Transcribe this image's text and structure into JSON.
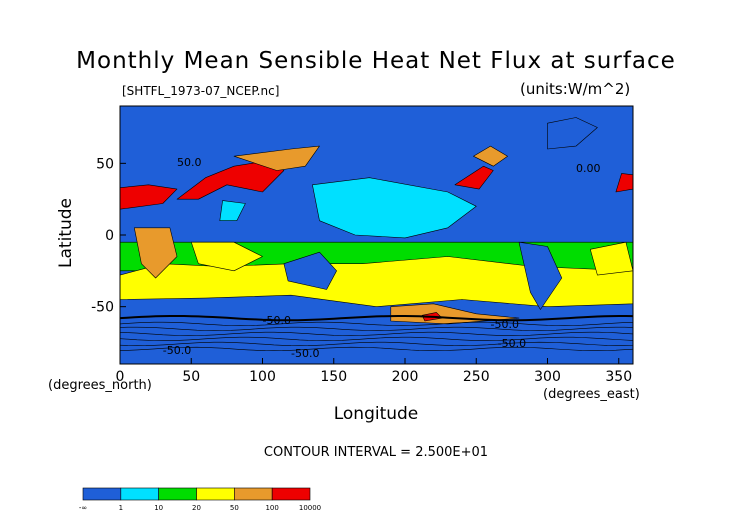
{
  "title": "Monthly Mean Sensible Heat Net Flux at surface",
  "file_label": "[SHTFL_1973-07_NCEP.nc]",
  "units_label": "(units:W/m^2)",
  "xlabel": "Longitude",
  "ylabel": "Latitude",
  "x_unit_left": "(degrees_north)",
  "x_unit_right": "(degrees_east)",
  "contour_interval": "CONTOUR INTERVAL = 2.500E+01",
  "colors": {
    "blue": "#1f5fd8",
    "cyan": "#00e0ff",
    "green": "#00dd00",
    "yellow": "#ffff00",
    "orange": "#e89a2c",
    "red": "#ee0000"
  },
  "chart_data": {
    "type": "heatmap",
    "title": "Monthly Mean Sensible Heat Net Flux at surface",
    "xlabel": "Longitude",
    "ylabel": "Latitude",
    "xlim": [
      0,
      360
    ],
    "ylim": [
      -90,
      90
    ],
    "x_ticks": [
      "0",
      "50",
      "100",
      "150",
      "200",
      "250",
      "300",
      "350"
    ],
    "y_ticks": [
      "50",
      "0",
      "-50"
    ],
    "contour_labels": [
      "50.0",
      "-50.0",
      "-50.0",
      "-50.0",
      "-50.0",
      "0.00",
      "-50.0"
    ],
    "colorbar_labels": [
      "-∞",
      "1",
      "10",
      "20",
      "50",
      "100",
      "10000"
    ],
    "colorbar_colors": [
      "#1f5fd8",
      "#00e0ff",
      "#00dd00",
      "#ffff00",
      "#e89a2c",
      "#ee0000"
    ],
    "regions": [
      {
        "name": "south-ocean-green",
        "color": "green",
        "pts": [
          [
            0,
            -5
          ],
          [
            360,
            -5
          ],
          [
            360,
            -25
          ],
          [
            0,
            -25
          ]
        ]
      },
      {
        "name": "south-yellow",
        "color": "yellow",
        "pts": [
          [
            0,
            -28
          ],
          [
            30,
            -20
          ],
          [
            70,
            -22
          ],
          [
            120,
            -20
          ],
          [
            170,
            -20
          ],
          [
            230,
            -15
          ],
          [
            290,
            -22
          ],
          [
            360,
            -25
          ],
          [
            360,
            -48
          ],
          [
            300,
            -50
          ],
          [
            240,
            -45
          ],
          [
            180,
            -50
          ],
          [
            120,
            -42
          ],
          [
            60,
            -44
          ],
          [
            0,
            -45
          ]
        ]
      },
      {
        "name": "south-orange",
        "color": "orange",
        "pts": [
          [
            190,
            -50
          ],
          [
            220,
            -48
          ],
          [
            250,
            -55
          ],
          [
            280,
            -58
          ],
          [
            230,
            -62
          ],
          [
            190,
            -60
          ]
        ]
      },
      {
        "name": "south-red",
        "color": "red",
        "pts": [
          [
            212,
            -56
          ],
          [
            222,
            -54
          ],
          [
            226,
            -58
          ],
          [
            214,
            -60
          ]
        ]
      },
      {
        "name": "pacific-cyan",
        "color": "cyan",
        "pts": [
          [
            135,
            35
          ],
          [
            175,
            40
          ],
          [
            230,
            30
          ],
          [
            250,
            20
          ],
          [
            230,
            5
          ],
          [
            200,
            -2
          ],
          [
            165,
            0
          ],
          [
            140,
            10
          ]
        ]
      },
      {
        "name": "indian-yellow",
        "color": "yellow",
        "pts": [
          [
            50,
            -5
          ],
          [
            80,
            -5
          ],
          [
            100,
            -15
          ],
          [
            80,
            -25
          ],
          [
            55,
            -20
          ]
        ]
      },
      {
        "name": "atlantic-yellow",
        "color": "yellow",
        "pts": [
          [
            330,
            -10
          ],
          [
            355,
            -5
          ],
          [
            360,
            -25
          ],
          [
            335,
            -28
          ]
        ]
      },
      {
        "name": "africa-orange",
        "color": "orange",
        "pts": [
          [
            10,
            5
          ],
          [
            35,
            5
          ],
          [
            40,
            -15
          ],
          [
            25,
            -30
          ],
          [
            15,
            -20
          ]
        ]
      },
      {
        "name": "australia-blue",
        "color": "blue",
        "pts": [
          [
            115,
            -20
          ],
          [
            140,
            -12
          ],
          [
            152,
            -25
          ],
          [
            145,
            -38
          ],
          [
            118,
            -32
          ]
        ]
      },
      {
        "name": "samerica-blue",
        "color": "blue",
        "pts": [
          [
            280,
            -5
          ],
          [
            300,
            -8
          ],
          [
            310,
            -30
          ],
          [
            295,
            -52
          ],
          [
            288,
            -40
          ]
        ]
      },
      {
        "name": "asia-red",
        "color": "red",
        "pts": [
          [
            40,
            25
          ],
          [
            60,
            40
          ],
          [
            80,
            48
          ],
          [
            105,
            52
          ],
          [
            115,
            45
          ],
          [
            100,
            30
          ],
          [
            75,
            35
          ],
          [
            55,
            25
          ]
        ]
      },
      {
        "name": "asia-orange",
        "color": "orange",
        "pts": [
          [
            80,
            55
          ],
          [
            120,
            60
          ],
          [
            140,
            62
          ],
          [
            130,
            48
          ],
          [
            110,
            45
          ]
        ]
      },
      {
        "name": "sahara-red",
        "color": "red",
        "pts": [
          [
            0,
            18
          ],
          [
            30,
            22
          ],
          [
            40,
            32
          ],
          [
            20,
            35
          ],
          [
            0,
            33
          ]
        ]
      },
      {
        "name": "iberia-red",
        "color": "red",
        "pts": [
          [
            348,
            30
          ],
          [
            360,
            32
          ],
          [
            360,
            42
          ],
          [
            352,
            43
          ]
        ]
      },
      {
        "name": "namerica-red",
        "color": "red",
        "pts": [
          [
            235,
            35
          ],
          [
            255,
            48
          ],
          [
            262,
            45
          ],
          [
            252,
            32
          ]
        ]
      },
      {
        "name": "namerica-orange",
        "color": "orange",
        "pts": [
          [
            248,
            55
          ],
          [
            260,
            62
          ],
          [
            272,
            55
          ],
          [
            262,
            48
          ]
        ]
      },
      {
        "name": "greenland-blue",
        "color": "blue",
        "pts": [
          [
            300,
            60
          ],
          [
            320,
            62
          ],
          [
            335,
            75
          ],
          [
            320,
            82
          ],
          [
            300,
            78
          ]
        ]
      },
      {
        "name": "india-cyan",
        "color": "cyan",
        "pts": [
          [
            70,
            10
          ],
          [
            82,
            10
          ],
          [
            88,
            22
          ],
          [
            72,
            24
          ]
        ]
      }
    ]
  }
}
